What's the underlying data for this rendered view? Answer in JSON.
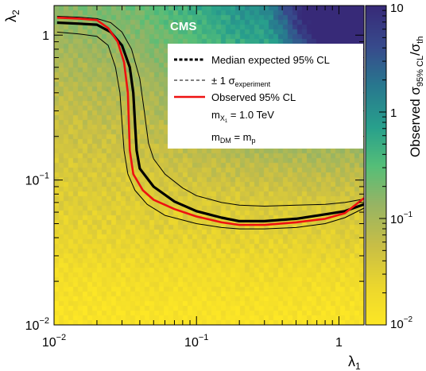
{
  "chart_data": {
    "type": "heatmap",
    "experiment_label": "CMS",
    "xlabel_base": "λ",
    "xlabel_sub": "1",
    "ylabel_base": "λ",
    "ylabel_sub": "2",
    "zlabel_parts": {
      "base": "Observed σ",
      "sub": "95% CL",
      "sep": "/σ",
      "sub2": "th"
    },
    "x_scale": "log",
    "y_scale": "log",
    "z_scale": "log",
    "xlim": [
      0.01,
      1.5
    ],
    "ylim": [
      0.01,
      1.6
    ],
    "zlim": [
      0.01,
      10
    ],
    "x_ticks": [
      {
        "value": 0.01,
        "label_base": "10",
        "label_exp": "−2"
      },
      {
        "value": 0.1,
        "label_base": "10",
        "label_exp": "−1"
      },
      {
        "value": 1,
        "label_base": "1",
        "label_exp": ""
      }
    ],
    "y_ticks": [
      {
        "value": 0.01,
        "label_base": "10",
        "label_exp": "−2"
      },
      {
        "value": 0.1,
        "label_base": "10",
        "label_exp": "−1"
      },
      {
        "value": 1,
        "label_base": "1",
        "label_exp": ""
      }
    ],
    "z_ticks": [
      {
        "value": 0.01,
        "label_base": "10",
        "label_exp": "−2"
      },
      {
        "value": 0.1,
        "label_base": "10",
        "label_exp": "−1"
      },
      {
        "value": 1,
        "label_base": "1",
        "label_exp": ""
      },
      {
        "value": 10,
        "label_base": "10",
        "label_exp": ""
      }
    ],
    "legend": {
      "placement": "top-right",
      "entries": [
        {
          "style": "dashed-thick",
          "color": "#000000",
          "text": "Median expected 95% CL"
        },
        {
          "style": "dashed-thin",
          "color": "#000000",
          "text_base": "± 1 σ",
          "text_sub": "experiment"
        },
        {
          "style": "solid",
          "color": "#ee1111",
          "text": "Observed 95% CL"
        }
      ],
      "notes": [
        {
          "base": "m",
          "sub": "X",
          "subsub": "1",
          "rest": " = 1.0 TeV"
        },
        {
          "base": "m",
          "sub": "DM",
          "rest": " = m",
          "sub2": "p"
        }
      ]
    },
    "series": [
      {
        "name": "Median expected 95% CL",
        "color": "#000000",
        "points": [
          [
            0.0105,
            1.22
          ],
          [
            0.015,
            1.2
          ],
          [
            0.02,
            1.18
          ],
          [
            0.025,
            1.05
          ],
          [
            0.03,
            0.85
          ],
          [
            0.034,
            0.6
          ],
          [
            0.036,
            0.4
          ],
          [
            0.037,
            0.25
          ],
          [
            0.038,
            0.16
          ],
          [
            0.04,
            0.12
          ],
          [
            0.05,
            0.09
          ],
          [
            0.07,
            0.071
          ],
          [
            0.1,
            0.061
          ],
          [
            0.15,
            0.055
          ],
          [
            0.2,
            0.052
          ],
          [
            0.3,
            0.052
          ],
          [
            0.5,
            0.054
          ],
          [
            0.8,
            0.058
          ],
          [
            1.1,
            0.061
          ],
          [
            1.5,
            0.068
          ]
        ]
      },
      {
        "name": "+1 sigma",
        "color": "#000000",
        "points": [
          [
            0.0105,
            1.35
          ],
          [
            0.015,
            1.33
          ],
          [
            0.02,
            1.3
          ],
          [
            0.025,
            1.22
          ],
          [
            0.03,
            1.05
          ],
          [
            0.035,
            0.8
          ],
          [
            0.04,
            0.5
          ],
          [
            0.043,
            0.3
          ],
          [
            0.046,
            0.18
          ],
          [
            0.05,
            0.14
          ],
          [
            0.06,
            0.11
          ],
          [
            0.08,
            0.088
          ],
          [
            0.1,
            0.078
          ],
          [
            0.15,
            0.07
          ],
          [
            0.2,
            0.067
          ],
          [
            0.3,
            0.066
          ],
          [
            0.5,
            0.067
          ],
          [
            0.8,
            0.068
          ],
          [
            1.1,
            0.07
          ],
          [
            1.5,
            0.074
          ]
        ]
      },
      {
        "name": "-1 sigma",
        "color": "#000000",
        "points": [
          [
            0.0105,
            1.05
          ],
          [
            0.015,
            1.02
          ],
          [
            0.02,
            0.98
          ],
          [
            0.024,
            0.85
          ],
          [
            0.027,
            0.6
          ],
          [
            0.029,
            0.4
          ],
          [
            0.03,
            0.25
          ],
          [
            0.031,
            0.16
          ],
          [
            0.033,
            0.11
          ],
          [
            0.037,
            0.085
          ],
          [
            0.045,
            0.068
          ],
          [
            0.06,
            0.057
          ],
          [
            0.1,
            0.05
          ],
          [
            0.15,
            0.047
          ],
          [
            0.2,
            0.046
          ],
          [
            0.3,
            0.046
          ],
          [
            0.5,
            0.047
          ],
          [
            0.8,
            0.05
          ],
          [
            1.1,
            0.055
          ],
          [
            1.5,
            0.064
          ]
        ]
      },
      {
        "name": "Observed 95% CL",
        "color": "#ee1111",
        "points": [
          [
            0.0105,
            1.32
          ],
          [
            0.015,
            1.3
          ],
          [
            0.02,
            1.27
          ],
          [
            0.024,
            1.12
          ],
          [
            0.028,
            0.9
          ],
          [
            0.031,
            0.65
          ],
          [
            0.033,
            0.4
          ],
          [
            0.0335,
            0.25
          ],
          [
            0.034,
            0.16
          ],
          [
            0.036,
            0.11
          ],
          [
            0.042,
            0.085
          ],
          [
            0.05,
            0.073
          ],
          [
            0.07,
            0.063
          ],
          [
            0.1,
            0.056
          ],
          [
            0.15,
            0.051
          ],
          [
            0.2,
            0.049
          ],
          [
            0.3,
            0.049
          ],
          [
            0.5,
            0.051
          ],
          [
            0.8,
            0.054
          ],
          [
            1.1,
            0.059
          ],
          [
            1.5,
            0.075
          ]
        ]
      }
    ]
  }
}
